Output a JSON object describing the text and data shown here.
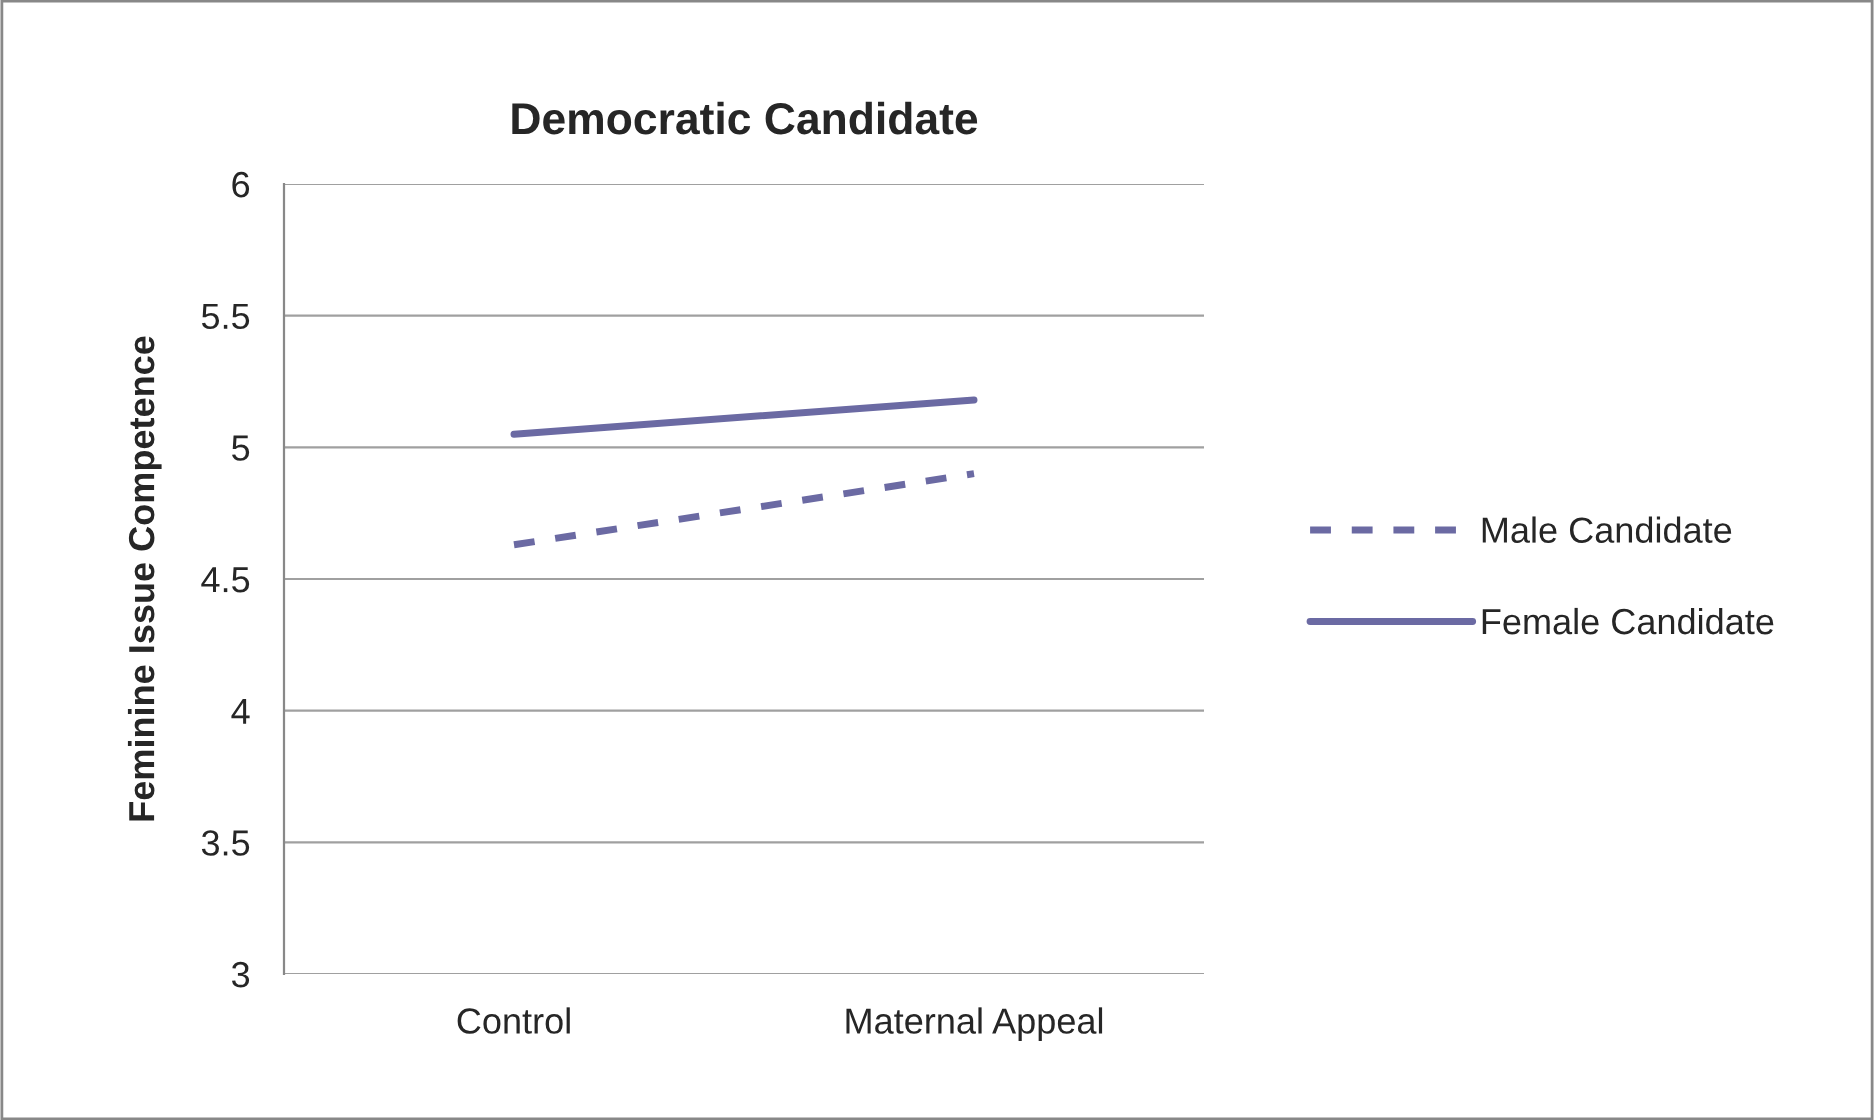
{
  "chart_data": {
    "type": "line",
    "title": "Democratic Candidate",
    "ylabel": "Feminine Issue Competence",
    "categories": [
      "Control",
      "Maternal Appeal"
    ],
    "series": [
      {
        "name": "Male Candidate",
        "color": "#6b6aa3",
        "values": [
          4.63,
          4.9
        ],
        "line_style": "dashed"
      },
      {
        "name": "Female Candidate",
        "color": "#6b6aa3",
        "values": [
          5.05,
          5.18
        ],
        "line_style": "solid"
      }
    ],
    "ylim": [
      3,
      6
    ],
    "yticks": [
      3,
      3.5,
      4,
      4.5,
      5,
      5.5,
      6
    ],
    "grid": "y",
    "legend": "right",
    "marker": "none"
  }
}
